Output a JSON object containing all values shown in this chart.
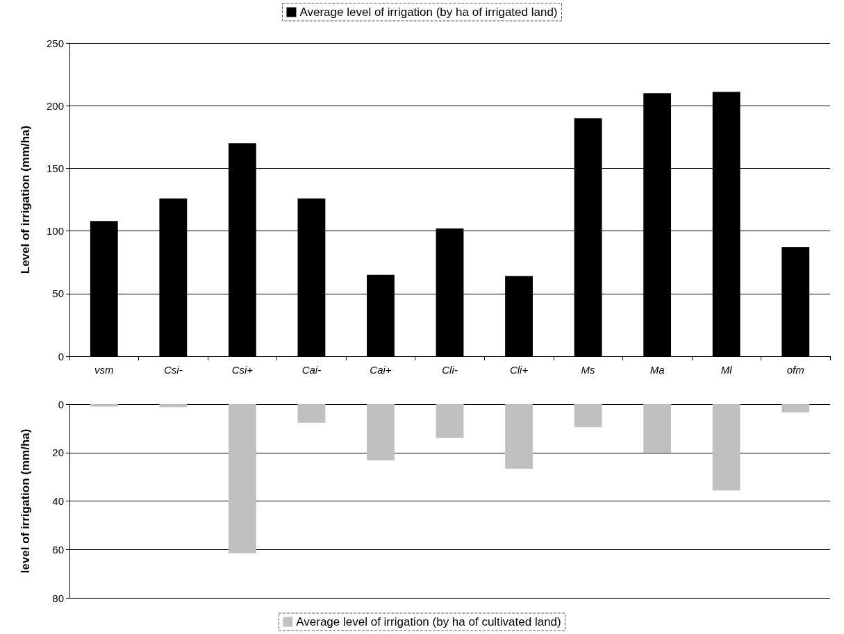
{
  "chart_data": [
    {
      "type": "bar",
      "ylabel": "Level of irrigation (mm/ha)",
      "categories": [
        "vsm",
        "Csi-",
        "Csi+",
        "Cai-",
        "Cai+",
        "Cli-",
        "Cli+",
        "Ms",
        "Ma",
        "Ml",
        "ofm"
      ],
      "series": [
        {
          "name": "Average level of irrigation (by ha of irrigated land)",
          "color": "#000000",
          "values": [
            108,
            126,
            170,
            126,
            65,
            102,
            64,
            190,
            210,
            211,
            87
          ]
        }
      ],
      "ylim": [
        0,
        250
      ],
      "yticks": [
        0,
        50,
        100,
        150,
        200,
        250
      ],
      "grid": "y",
      "legend": "top"
    },
    {
      "type": "bar",
      "ylabel": "level of irrigation (mm/ha)",
      "categories": [
        null,
        null,
        null,
        null,
        null,
        null,
        null,
        null,
        null,
        null,
        null
      ],
      "series": [
        {
          "name": "Average level of irrigation (by ha of cultivated land)",
          "color": "#c0c0c0",
          "values": [
            1,
            1.2,
            61.6,
            7.7,
            23.2,
            14,
            26.7,
            9.5,
            20,
            35.6,
            3.4
          ]
        }
      ],
      "ylim": [
        80,
        0
      ],
      "yticks": [
        0,
        20,
        40,
        60,
        80
      ],
      "grid": "y",
      "legend": "bottom",
      "tick_labels": "y"
    }
  ]
}
